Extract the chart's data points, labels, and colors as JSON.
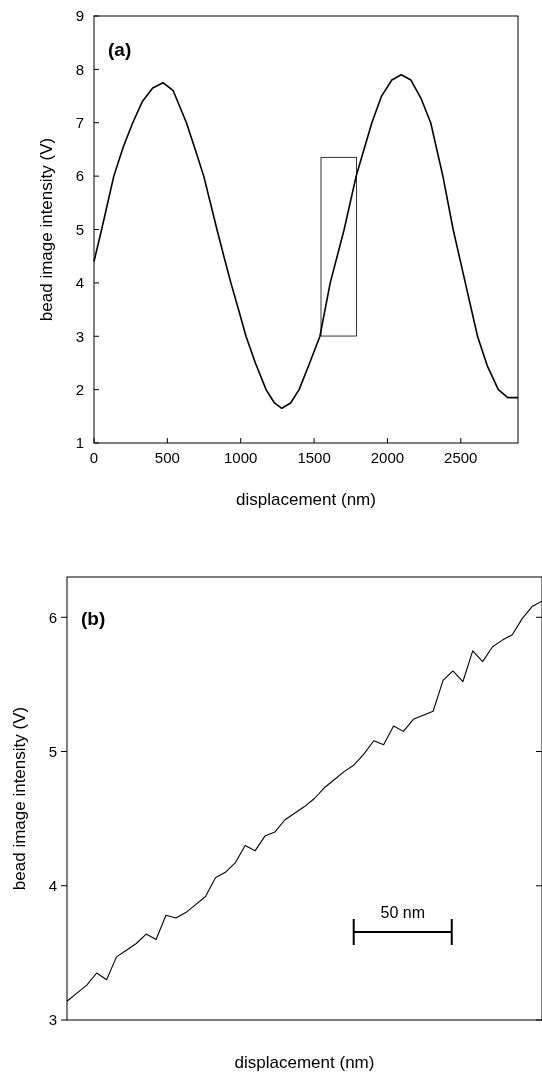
{
  "chart_data": [
    {
      "type": "line",
      "xlabel": "displacement (nm)",
      "ylabel": "bead image intensity (V)",
      "annotations": [
        "(a)"
      ],
      "xlim": [
        0,
        2890
      ],
      "xticks": [
        0,
        500,
        1000,
        1500,
        2000,
        2500
      ],
      "ylim": [
        1,
        9
      ],
      "yticks": [
        1,
        2,
        3,
        4,
        5,
        6,
        7,
        8,
        9
      ],
      "grid": false,
      "series": [
        {
          "color": "#000000",
          "x": [
            0,
            52,
            135,
            200,
            264,
            330,
            400,
            470,
            540,
            630,
            690,
            748,
            793,
            838,
            885,
            933,
            985,
            1036,
            1100,
            1173,
            1230,
            1280,
            1340,
            1398,
            1470,
            1540,
            1610,
            1705,
            1787,
            1840,
            1894,
            1960,
            2030,
            2094,
            2160,
            2230,
            2295,
            2378,
            2448,
            2531,
            2614,
            2680,
            2756,
            2820,
            2890
          ],
          "values": [
            4.4,
            5,
            6,
            6.55,
            7,
            7.4,
            7.65,
            7.75,
            7.6,
            7,
            6.5,
            6,
            5.5,
            5,
            4.5,
            4,
            3.5,
            3,
            2.5,
            2,
            1.75,
            1.65,
            1.75,
            2,
            2.5,
            3,
            4,
            5,
            6,
            6.5,
            7,
            7.5,
            7.8,
            7.9,
            7.8,
            7.45,
            7,
            6,
            5,
            4,
            3,
            2.45,
            2,
            1.85,
            1.85
          ]
        }
      ]
    },
    {
      "type": "line",
      "xlabel": "displacement (nm)",
      "ylabel": "bead image intensity (V)",
      "annotations": [
        "(b)",
        "50 nm"
      ],
      "categories": [
        null,
        null,
        null,
        null,
        null,
        null,
        null,
        null,
        null,
        null,
        null,
        null,
        null,
        null,
        null,
        null,
        null,
        null,
        null,
        null,
        null,
        null,
        null,
        null,
        null,
        null,
        null,
        null,
        null,
        null,
        null,
        null,
        null,
        null,
        null,
        null,
        null,
        null,
        null,
        null,
        null,
        null,
        null,
        null,
        null,
        null,
        null,
        null,
        null
      ],
      "ylim": [
        3,
        6.3
      ],
      "yticks": [
        3,
        4,
        5,
        6
      ],
      "tick_labels": "y",
      "grid": false,
      "series": [
        {
          "color": "#000000",
          "values": [
            3.14,
            3.2,
            3.26,
            3.35,
            3.3,
            3.47,
            3.52,
            3.57,
            3.64,
            3.6,
            3.78,
            3.76,
            3.8,
            3.86,
            3.92,
            4.06,
            4.1,
            4.17,
            4.3,
            4.26,
            4.37,
            4.4,
            4.49,
            4.54,
            4.59,
            4.65,
            4.73,
            4.79,
            4.85,
            4.9,
            4.98,
            5.08,
            5.05,
            5.19,
            5.15,
            5.24,
            5.27,
            5.3,
            5.53,
            5.6,
            5.52,
            5.75,
            5.67,
            5.78,
            5.83,
            5.87,
            5.99,
            6.08,
            6.12
          ]
        }
      ]
    }
  ]
}
